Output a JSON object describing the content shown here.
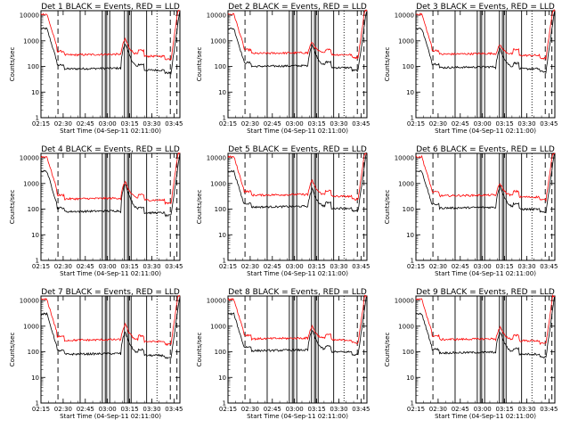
{
  "figure": {
    "ylabel": "Counts/sec",
    "xlabel": "Start Time (04-Sep-11 02:11:00)"
  },
  "axis": {
    "x_ticks": [
      "02:15",
      "02:30",
      "02:45",
      "03:00",
      "03:15",
      "03:30",
      "03:45"
    ],
    "y_ticks": [
      "1",
      "10",
      "100",
      "1000",
      "10000"
    ],
    "y_scale": "log",
    "ylim": [
      1,
      15000
    ],
    "xlim_minutes": [
      4,
      98
    ]
  },
  "colors": {
    "events": "#000000",
    "lld": "#ff0000"
  },
  "chart_data": [
    {
      "type": "line",
      "title": "Det  1 BLACK = Events, RED = LLD",
      "series": [
        {
          "color": "black",
          "base": 80,
          "pre": 3000,
          "peak": 800
        },
        {
          "color": "red",
          "base": 280,
          "pre": 11000,
          "peak": 1200
        }
      ]
    },
    {
      "type": "line",
      "title": "Det  2 BLACK = Events, RED = LLD",
      "series": [
        {
          "color": "black",
          "base": 100,
          "pre": 3000,
          "peak": 700
        },
        {
          "color": "red",
          "base": 320,
          "pre": 11000,
          "peak": 900
        }
      ]
    },
    {
      "type": "line",
      "title": "Det  3 BLACK = Events, RED = LLD",
      "series": [
        {
          "color": "black",
          "base": 90,
          "pre": 3000,
          "peak": 500
        },
        {
          "color": "red",
          "base": 300,
          "pre": 11000,
          "peak": 700
        }
      ]
    },
    {
      "type": "line",
      "title": "Det  4 BLACK = Events, RED = LLD",
      "series": [
        {
          "color": "black",
          "base": 80,
          "pre": 3000,
          "peak": 1000
        },
        {
          "color": "red",
          "base": 250,
          "pre": 11000,
          "peak": 1200
        }
      ]
    },
    {
      "type": "line",
      "title": "Det  5 BLACK = Events, RED = LLD",
      "series": [
        {
          "color": "black",
          "base": 120,
          "pre": 3000,
          "peak": 600
        },
        {
          "color": "red",
          "base": 350,
          "pre": 11000,
          "peak": 1300
        }
      ]
    },
    {
      "type": "line",
      "title": "Det  6 BLACK = Events, RED = LLD",
      "series": [
        {
          "color": "black",
          "base": 110,
          "pre": 3000,
          "peak": 800
        },
        {
          "color": "red",
          "base": 330,
          "pre": 11000,
          "peak": 1000
        }
      ]
    },
    {
      "type": "line",
      "title": "Det  7 BLACK = Events, RED = LLD",
      "series": [
        {
          "color": "black",
          "base": 80,
          "pre": 3000,
          "peak": 600
        },
        {
          "color": "red",
          "base": 280,
          "pre": 11000,
          "peak": 1200
        }
      ]
    },
    {
      "type": "line",
      "title": "Det  8 BLACK = Events, RED = LLD",
      "series": [
        {
          "color": "black",
          "base": 110,
          "pre": 3000,
          "peak": 700
        },
        {
          "color": "red",
          "base": 320,
          "pre": 11000,
          "peak": 1000
        }
      ]
    },
    {
      "type": "line",
      "title": "Det  9 BLACK = Events, RED = LLD",
      "series": [
        {
          "color": "black",
          "base": 90,
          "pre": 3000,
          "peak": 600
        },
        {
          "color": "red",
          "base": 300,
          "pre": 11000,
          "peak": 900
        }
      ]
    }
  ],
  "markers": {
    "solid_minutes": [
      30.5,
      45.5,
      47.5,
      48.5,
      50.5,
      60.5,
      62.5,
      63.5,
      65,
      75.5
    ],
    "dashed_minutes": [
      15.5,
      91.5,
      96
    ],
    "dotted_minutes": [
      82.5
    ]
  }
}
